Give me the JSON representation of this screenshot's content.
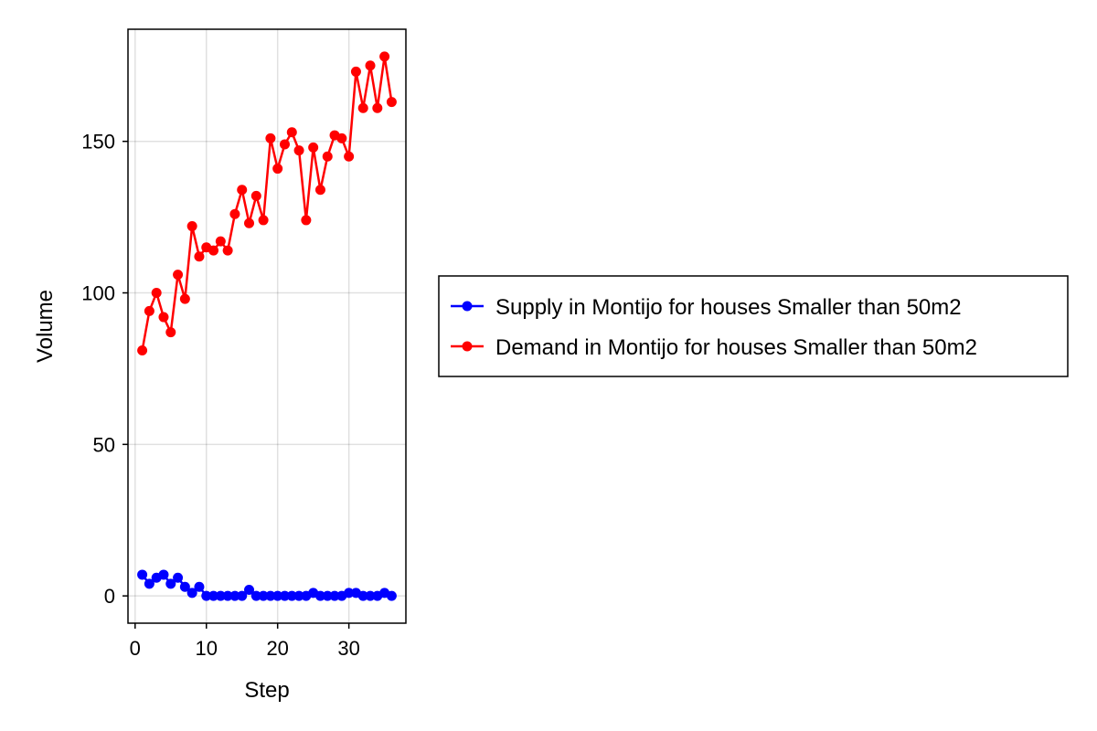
{
  "chart_data": {
    "type": "line",
    "title": "",
    "xlabel": "Step",
    "ylabel": "Volume",
    "xlim": [
      -1,
      38
    ],
    "ylim": [
      -9,
      187
    ],
    "xticks": [
      0,
      10,
      20,
      30
    ],
    "yticks": [
      0,
      50,
      100,
      150
    ],
    "grid": true,
    "legend_position": "right",
    "x": [
      1,
      2,
      3,
      4,
      5,
      6,
      7,
      8,
      9,
      10,
      11,
      12,
      13,
      14,
      15,
      16,
      17,
      18,
      19,
      20,
      21,
      22,
      23,
      24,
      25,
      26,
      27,
      28,
      29,
      30,
      31,
      32,
      33,
      34,
      35,
      36
    ],
    "series": [
      {
        "name": "Supply in Montijo for houses Smaller than 50m2",
        "color": "#0000ff",
        "values": [
          7,
          4,
          6,
          7,
          4,
          6,
          3,
          1,
          3,
          0,
          0,
          0,
          0,
          0,
          0,
          2,
          0,
          0,
          0,
          0,
          0,
          0,
          0,
          0,
          1,
          0,
          0,
          0,
          0,
          1,
          1,
          0,
          0,
          0,
          1,
          0
        ]
      },
      {
        "name": "Demand in Montijo for houses Smaller than 50m2",
        "color": "#ff0000",
        "values": [
          81,
          94,
          100,
          92,
          87,
          106,
          98,
          122,
          112,
          115,
          114,
          117,
          114,
          126,
          134,
          123,
          132,
          124,
          151,
          141,
          149,
          153,
          147,
          124,
          148,
          134,
          145,
          152,
          151,
          145,
          173,
          161,
          175,
          161,
          178,
          163
        ]
      }
    ]
  }
}
